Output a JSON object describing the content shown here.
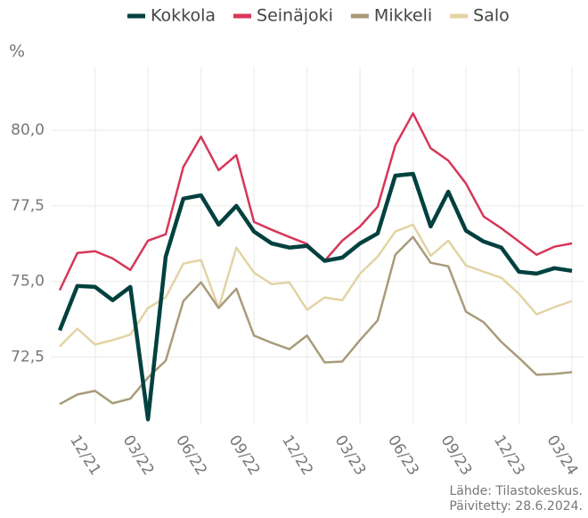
{
  "chart_data": {
    "type": "line",
    "y_label": "%",
    "source": "Lähde: Tilastokeskus.",
    "updated": "Päivitetty: 28.6.2024.",
    "categories": [
      null,
      null,
      "12/21",
      null,
      null,
      "03/22",
      null,
      null,
      "06/22",
      null,
      null,
      "09/22",
      null,
      null,
      "12/22",
      null,
      null,
      "03/23",
      null,
      null,
      "06/23",
      null,
      null,
      "09/23",
      null,
      null,
      "12/23",
      null,
      null,
      "03/24"
    ],
    "series": [
      {
        "name": "Kokkola",
        "color": "#00413f",
        "width": 4.5,
        "values": [
          73.38,
          74.85,
          74.82,
          74.38,
          74.82,
          70.44,
          75.82,
          77.74,
          77.85,
          76.88,
          77.5,
          76.65,
          76.26,
          76.12,
          76.18,
          75.68,
          75.79,
          76.26,
          76.59,
          78.5,
          78.56,
          76.82,
          77.97,
          76.68,
          76.32,
          76.12,
          75.32,
          75.26,
          75.44,
          75.35
        ]
      },
      {
        "name": "Seinäjoki",
        "color": "#d6375a",
        "width": 2.5,
        "values": [
          74.71,
          75.94,
          76.0,
          75.76,
          75.38,
          76.35,
          76.56,
          78.79,
          79.79,
          78.68,
          79.18,
          76.97,
          76.71,
          76.47,
          76.24,
          75.68,
          76.35,
          76.82,
          77.47,
          79.5,
          80.56,
          79.41,
          79.0,
          78.24,
          77.15,
          76.76,
          76.32,
          75.88,
          76.15,
          76.26
        ]
      },
      {
        "name": "Mikkeli",
        "color": "#a89b7a",
        "width": 2.5,
        "values": [
          70.94,
          71.26,
          71.38,
          70.97,
          71.12,
          71.82,
          72.38,
          74.35,
          74.97,
          74.12,
          74.76,
          73.21,
          72.97,
          72.76,
          73.21,
          72.32,
          72.35,
          73.06,
          73.71,
          75.88,
          76.47,
          75.62,
          75.5,
          74.0,
          73.65,
          73.0,
          72.47,
          71.91,
          71.94,
          72.0
        ]
      },
      {
        "name": "Salo",
        "color": "#e3d3a4",
        "width": 2.5,
        "values": [
          72.85,
          73.44,
          72.91,
          73.06,
          73.24,
          74.12,
          74.47,
          75.59,
          75.71,
          74.12,
          76.12,
          75.29,
          74.91,
          74.97,
          74.06,
          74.47,
          74.38,
          75.26,
          75.82,
          76.65,
          76.88,
          75.85,
          76.35,
          75.53,
          75.32,
          75.12,
          74.59,
          73.91,
          74.15,
          74.35
        ]
      }
    ],
    "ylim": [
      70.3,
      82.1
    ],
    "yticks": [
      {
        "value": 72.5,
        "label": "72,5"
      },
      {
        "value": 75,
        "label": "75,0"
      },
      {
        "value": 77.5,
        "label": "77,5"
      },
      {
        "value": 80,
        "label": "80,0"
      }
    ],
    "grid": true
  }
}
